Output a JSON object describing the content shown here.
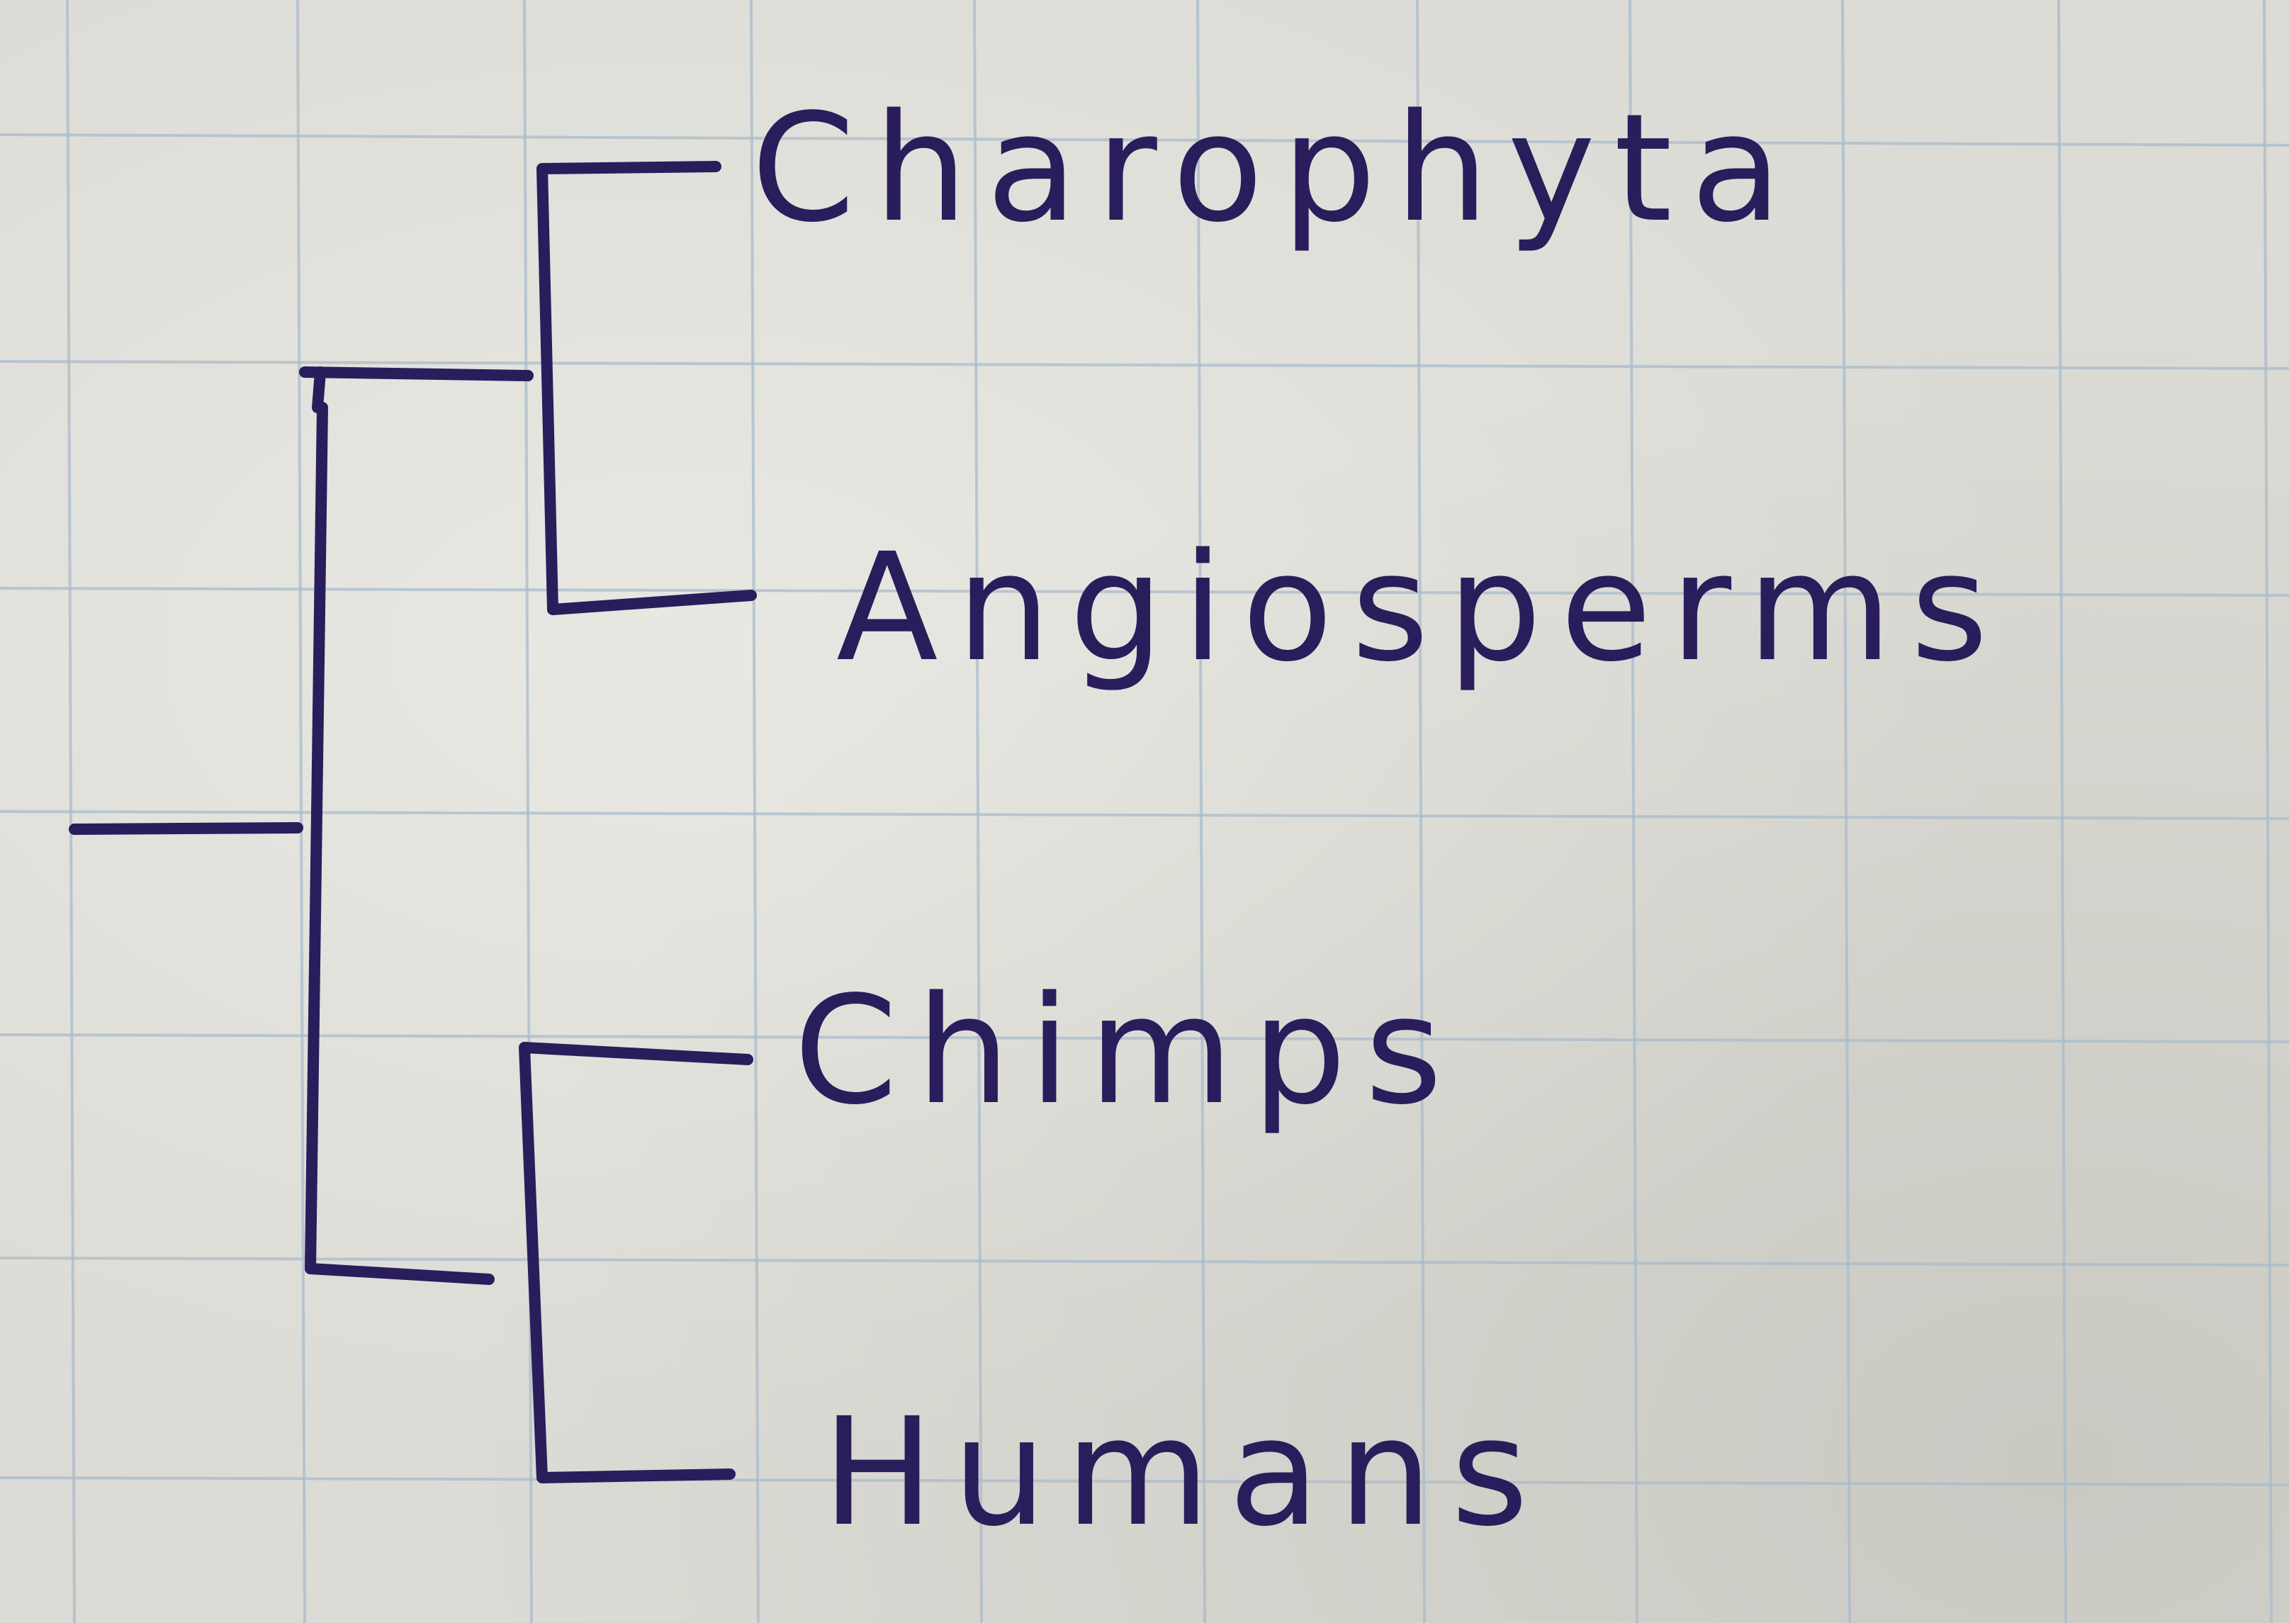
{
  "tree": {
    "leaves": [
      {
        "id": "charophyta",
        "label": "Charophyta"
      },
      {
        "id": "angiosperms",
        "label": "Angiosperms"
      },
      {
        "id": "chimps",
        "label": "Chimps"
      },
      {
        "id": "humans",
        "label": "Humans"
      }
    ],
    "clades": [
      {
        "id": "plants-clade",
        "members": [
          "Charophyta",
          "Angiosperms"
        ]
      },
      {
        "id": "primates-clade",
        "members": [
          "Chimps",
          "Humans"
        ]
      }
    ]
  },
  "colors": {
    "ink": "#2a1d5c",
    "paper": "#dcdbd5",
    "grid": "#a9bccb"
  }
}
